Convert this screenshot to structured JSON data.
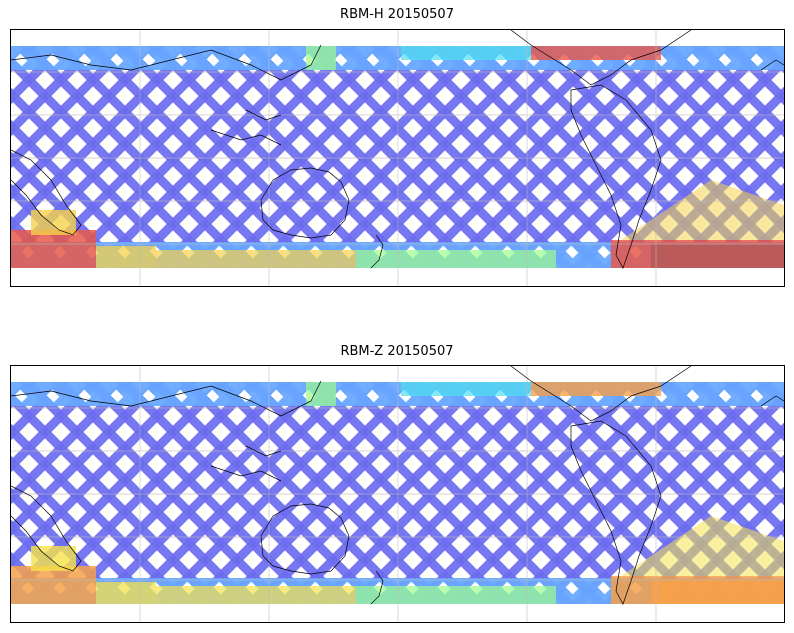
{
  "panels": [
    {
      "title": "RBM-H 20150507",
      "colors": {
        "track": "#6b6cf0",
        "north_band": "#68a8ff",
        "hot": "#e8584a",
        "warm": "#f6d24a",
        "mild": "#9dfc8c",
        "cool": "#4fe0f0",
        "saturated": "#b85a5a"
      }
    },
    {
      "title": "RBM-Z 20150507",
      "colors": {
        "track": "#6b6cf0",
        "north_band": "#68a8ff",
        "hot": "#f6a04a",
        "warm": "#f6e24a",
        "mild": "#9dfc8c",
        "cool": "#4fe0f0",
        "saturated": "#f6a04a"
      }
    }
  ],
  "map": {
    "projection": "equirectangular",
    "gridlines": true,
    "coastlines": true
  }
}
